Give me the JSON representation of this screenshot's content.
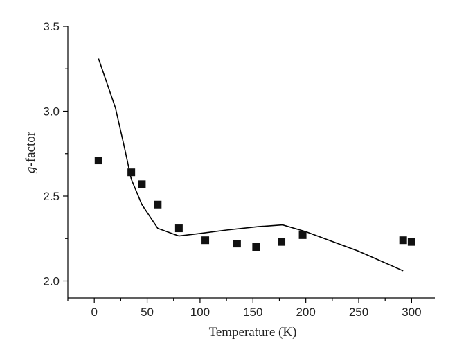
{
  "chart_data": {
    "type": "scatter",
    "title": "",
    "xlabel": "Temperature (K)",
    "ylabel_italic": "g",
    "ylabel_rest": "-factor",
    "xlim": [
      -25,
      322
    ],
    "ylim": [
      1.9,
      3.5
    ],
    "x_ticks": [
      0,
      50,
      100,
      150,
      200,
      250,
      300
    ],
    "x_tick_labels": [
      "0",
      "50",
      "100",
      "150",
      "200",
      "250",
      "300"
    ],
    "y_ticks": [
      2.0,
      2.5,
      3.0,
      3.5
    ],
    "y_tick_labels": [
      "2.0",
      "2.5",
      "3.0",
      "3.5"
    ],
    "grid": false,
    "series": [
      {
        "kind": "scatter",
        "marker": "square",
        "color": "#111111",
        "points": [
          [
            4,
            2.71
          ],
          [
            35,
            2.64
          ],
          [
            45,
            2.57
          ],
          [
            60,
            2.45
          ],
          [
            80,
            2.31
          ],
          [
            105,
            2.24
          ],
          [
            135,
            2.22
          ],
          [
            153,
            2.2
          ],
          [
            177,
            2.23
          ],
          [
            197,
            2.27
          ],
          [
            292,
            2.24
          ],
          [
            300,
            2.23
          ]
        ]
      },
      {
        "kind": "line",
        "color": "#000000",
        "points": [
          [
            4,
            3.31
          ],
          [
            20,
            3.02
          ],
          [
            28,
            2.8
          ],
          [
            35,
            2.6
          ],
          [
            45,
            2.45
          ],
          [
            60,
            2.31
          ],
          [
            80,
            2.265
          ],
          [
            100,
            2.28
          ],
          [
            125,
            2.3
          ],
          [
            155,
            2.32
          ],
          [
            178,
            2.33
          ],
          [
            200,
            2.29
          ],
          [
            250,
            2.175
          ],
          [
            292,
            2.06
          ]
        ]
      }
    ]
  }
}
